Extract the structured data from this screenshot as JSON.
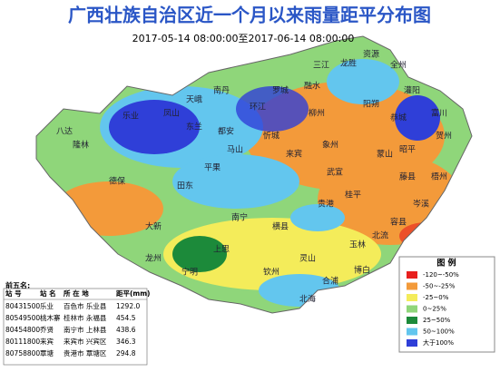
{
  "header": {
    "title": "广西壮族自治区近一个月以来雨量距平分布图",
    "subtitle": "2017-05-14 08:00:00至2017-06-14 08:00:00"
  },
  "places": [
    "八达",
    "隆林",
    "乐业",
    "凤山",
    "天峨",
    "南丹",
    "罗城",
    "环江",
    "融水",
    "三江",
    "龙胜",
    "资源",
    "全州",
    "灌阳",
    "阳朔",
    "恭城",
    "富川",
    "贺州",
    "昭平",
    "蒙山",
    "藤县",
    "梧州",
    "岑溪",
    "容县",
    "北流",
    "玉林",
    "博白",
    "钦州",
    "北海",
    "宁明",
    "龙州",
    "大新",
    "德保",
    "田东",
    "平果",
    "马山",
    "都安",
    "东兰",
    "忻城",
    "象州",
    "来宾",
    "柳州",
    "武宣",
    "桂平",
    "贵港",
    "南宁",
    "横县",
    "灵山",
    "合浦",
    "上思"
  ],
  "legend": {
    "title": "图 例",
    "items": [
      {
        "label": "-120~-50%",
        "color": "#e8201e"
      },
      {
        "label": "-50~-25%",
        "color": "#f39a3a"
      },
      {
        "label": "-25~0%",
        "color": "#f4ec5a"
      },
      {
        "label": "0~25%",
        "color": "#8fd67a"
      },
      {
        "label": "25~50%",
        "color": "#1c8a3a"
      },
      {
        "label": "50~100%",
        "color": "#63c6ee"
      },
      {
        "label": "大于100%",
        "color": "#2f3fd8"
      }
    ]
  },
  "table": {
    "title": "前五名:",
    "columns": [
      "站 号",
      "站 名",
      "所 在 地",
      "距平(mm)"
    ],
    "rows": [
      [
        "80431500",
        "乐业",
        "百色市 乐业县",
        "1292.0"
      ],
      [
        "80549500",
        "桃木寨",
        "桂林市 永福县",
        "454.5"
      ],
      [
        "80454800",
        "乔贤",
        "南宁市 上林县",
        "438.6"
      ],
      [
        "80111800",
        "来宾",
        "来宾市 兴宾区",
        "346.3"
      ],
      [
        "80758800",
        "覃塘",
        "贵港市 覃塘区",
        "294.8"
      ]
    ]
  }
}
